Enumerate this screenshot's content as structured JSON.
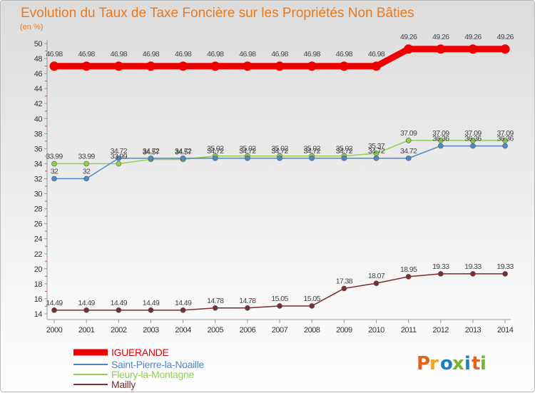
{
  "chart_data": {
    "type": "line",
    "title": "Evolution du Taux de Taxe Foncière sur les Propriétés Non Bâties",
    "subtitle": "(en %)",
    "xlabel": "",
    "ylabel": "",
    "ylim": [
      14,
      50
    ],
    "y_ticks": [
      14,
      16,
      18,
      20,
      22,
      24,
      26,
      28,
      30,
      32,
      34,
      36,
      38,
      40,
      42,
      44,
      46,
      48,
      50
    ],
    "categories": [
      "2000",
      "2001",
      "2002",
      "2003",
      "2004",
      "2005",
      "2006",
      "2007",
      "2008",
      "2009",
      "2010",
      "2011",
      "2012",
      "2013",
      "2014"
    ],
    "legend_position": "bottom-left",
    "grid": false,
    "series": [
      {
        "name": "IGUERANDE",
        "color": "#ee0000",
        "values": [
          46.98,
          46.98,
          46.98,
          46.98,
          46.98,
          46.98,
          46.98,
          46.98,
          46.98,
          46.98,
          46.98,
          49.26,
          49.26,
          49.26,
          49.26
        ],
        "labels": [
          "46.98",
          "46.98",
          "46.98",
          "46.98",
          "46.98",
          "46.98",
          "46.98",
          "46.98",
          "46.98",
          "46.98",
          "46.98",
          "49.26",
          "49.26",
          "49.26",
          "49.26"
        ]
      },
      {
        "name": "Saint-Pierre-la-Noaille",
        "color": "#4f87c8",
        "values": [
          32,
          32,
          34.72,
          34.72,
          34.72,
          34.72,
          34.72,
          34.72,
          34.72,
          34.72,
          34.72,
          34.72,
          36.36,
          36.36,
          36.36
        ],
        "labels": [
          "32",
          "32",
          "34.72",
          "34.72",
          "34.72",
          "34.72",
          "34.72",
          "34.72",
          "34.72",
          "34.72",
          "34.72",
          "34.72",
          "36.36",
          "36.36",
          "36.36"
        ]
      },
      {
        "name": "Fleury-la-Montagne",
        "color": "#8fd14f",
        "values": [
          33.99,
          33.99,
          33.99,
          34.57,
          34.57,
          35.02,
          35.02,
          35.02,
          35.02,
          35.02,
          35.37,
          37.09,
          37.09,
          37.09,
          37.09
        ],
        "labels": [
          "33.99",
          "33.99",
          "33.99",
          "34.57",
          "34.57",
          "35.02",
          "35.02",
          "35.02",
          "35.02",
          "35.02",
          "35.37",
          "37.09",
          "37.09",
          "37.09",
          "37.09"
        ]
      },
      {
        "name": "Mailly",
        "color": "#7a2e2e",
        "values": [
          14.49,
          14.49,
          14.49,
          14.49,
          14.49,
          14.78,
          14.78,
          15.05,
          15.05,
          17.38,
          18.07,
          18.95,
          19.33,
          19.33,
          19.33
        ],
        "labels": [
          "14.49",
          "14.49",
          "14.49",
          "14.49",
          "14.49",
          "14.78",
          "14.78",
          "15.05",
          "15.05",
          "17.38",
          "18.07",
          "18.95",
          "19.33",
          "19.33",
          "19.33"
        ]
      }
    ]
  },
  "logo": {
    "text": "Proxiti",
    "colors": [
      "#e5621a",
      "#f3a21d",
      "#1b7fc4",
      "#75b72b",
      "#1b7fc4",
      "#e5621a",
      "#75b72b"
    ]
  }
}
